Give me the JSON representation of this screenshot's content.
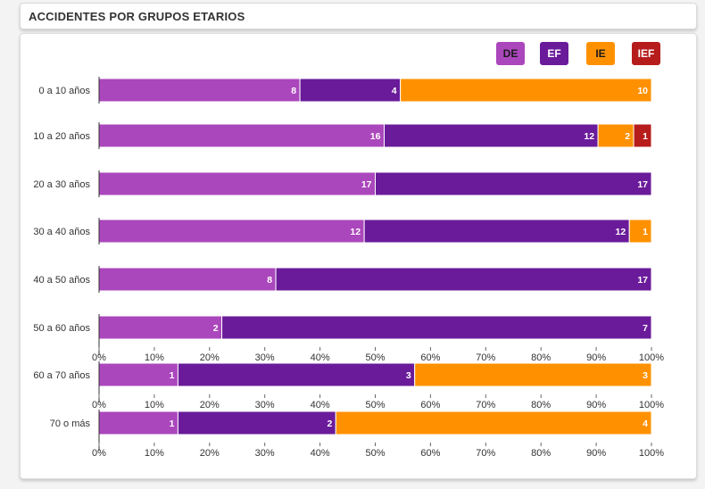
{
  "header": {
    "title": "ACCIDENTES POR GRUPOS ETARIOS"
  },
  "legend": [
    {
      "label": "DE",
      "color": "#ab47bc",
      "text_color": "#1a1a1a"
    },
    {
      "label": "EF",
      "color": "#6a1b9a",
      "text_color": "#ffffff"
    },
    {
      "label": "IE",
      "color": "#ff9100",
      "text_color": "#1a1a1a"
    },
    {
      "label": "IEF",
      "color": "#b71c1c",
      "text_color": "#ffffff"
    }
  ],
  "chart_data": {
    "type": "bar",
    "orientation": "horizontal",
    "stacked": "percent",
    "categories": [
      "0 a 10 años",
      "10 a 20 años",
      "20 a 30 años",
      "30 a 40 años",
      "40 a 50 años",
      "50 a 60 años",
      "60 a 70 años",
      "70 o más"
    ],
    "series": [
      {
        "name": "DE",
        "color": "#ab47bc",
        "values": [
          8,
          16,
          17,
          12,
          8,
          2,
          1,
          1
        ]
      },
      {
        "name": "EF",
        "color": "#6a1b9a",
        "values": [
          4,
          12,
          17,
          12,
          17,
          7,
          3,
          2
        ]
      },
      {
        "name": "IE",
        "color": "#ff9100",
        "values": [
          10,
          2,
          0,
          1,
          0,
          0,
          3,
          4
        ]
      },
      {
        "name": "IEF",
        "color": "#b71c1c",
        "values": [
          0,
          1,
          0,
          0,
          0,
          0,
          0,
          0
        ]
      }
    ],
    "xlim": [
      0,
      100
    ],
    "x_ticks": [
      "0%",
      "10%",
      "20%",
      "30%",
      "40%",
      "50%",
      "60%",
      "70%",
      "80%",
      "90%",
      "100%"
    ],
    "axis_shown_after": [
      "50 a 60 años",
      "60 a 70 años",
      "70 o más"
    ],
    "legend_position": "top-right",
    "grid": false
  }
}
